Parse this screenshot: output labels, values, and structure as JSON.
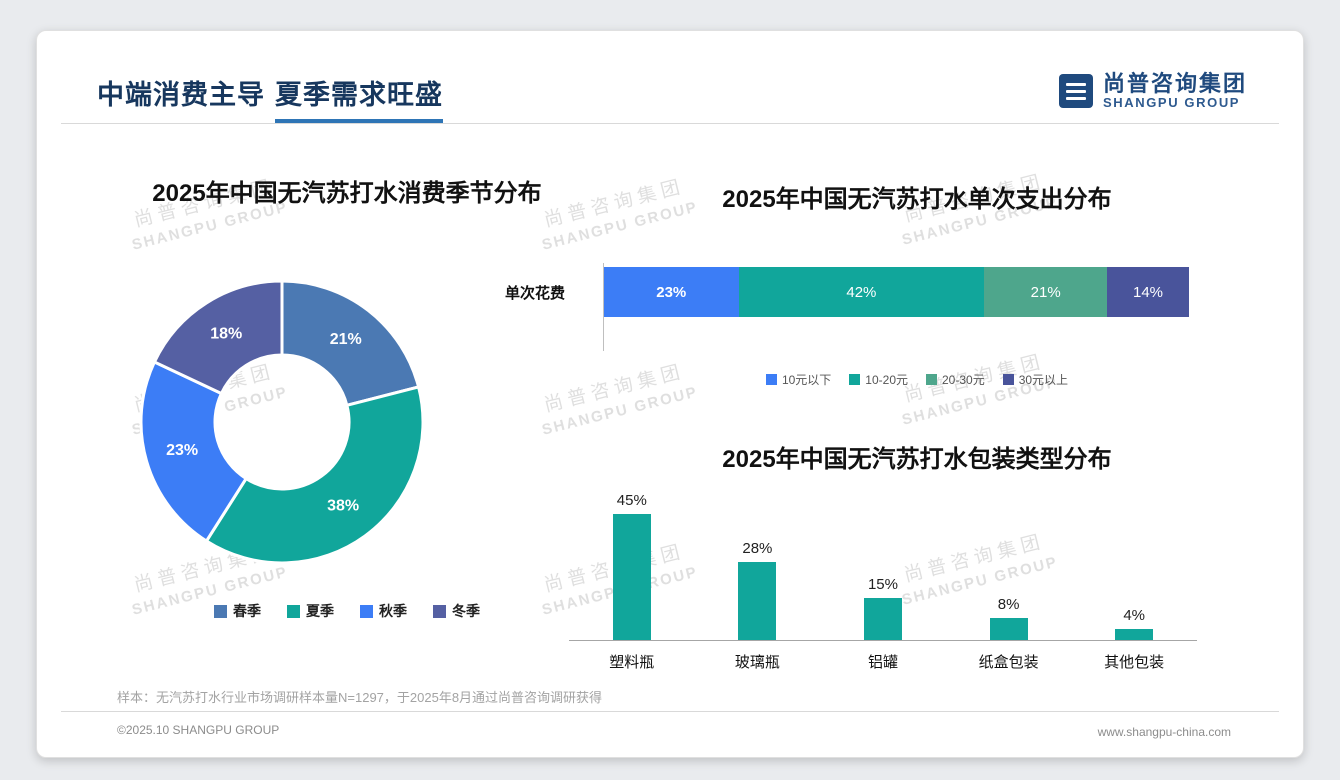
{
  "slide": {
    "title_part1": "中端消费主导",
    "title_part2": "夏季需求旺盛",
    "logo": {
      "name_cn": "尚普咨询集团",
      "name_en": "SHANGPU GROUP"
    },
    "watermark": {
      "line1": "尚普咨询集团",
      "line2": "SHANGPU GROUP"
    },
    "footnote": "样本：无汽苏打水行业市场调研样本量N=1297，于2025年8月通过尚普咨询调研获得",
    "footer": {
      "left": "©2025.10 SHANGPU GROUP",
      "right": "www.shangpu-china.com"
    }
  },
  "colors": {
    "accent_underline": "#2E75B6",
    "title_navy": "#17375E",
    "logo_navy": "#1F4A7E",
    "teal": "#11A69B",
    "steel_blue": "#4B79B3",
    "bright_blue": "#3C7DF6",
    "slate_blue": "#5560A3",
    "sea_green": "#4EA68C",
    "dark_slate": "#49549B"
  },
  "chart_data": [
    {
      "id": "season-donut",
      "type": "pie",
      "donut": true,
      "title": "2025年中国无汽苏打水消费季节分布",
      "categories": [
        "春季",
        "夏季",
        "秋季",
        "冬季"
      ],
      "values": [
        21,
        38,
        23,
        18
      ],
      "unit": "%",
      "colors": [
        "#4B79B3",
        "#11A69B",
        "#3C7DF6",
        "#5560A3"
      ],
      "legend_position": "bottom",
      "start_angle_deg": -90,
      "direction": "clockwise"
    },
    {
      "id": "spend-stacked-bar",
      "type": "bar",
      "orientation": "horizontal-stacked",
      "title": "2025年中国无汽苏打水单次支出分布",
      "row_label": "单次花费",
      "categories": [
        "10元以下",
        "10-20元",
        "20-30元",
        "30元以上"
      ],
      "values": [
        23,
        42,
        21,
        14
      ],
      "unit": "%",
      "colors": [
        "#3C7DF6",
        "#11A69B",
        "#4EA68C",
        "#49549B"
      ],
      "legend_position": "bottom",
      "xlim": [
        0,
        100
      ]
    },
    {
      "id": "packaging-bar",
      "type": "bar",
      "orientation": "vertical",
      "title": "2025年中国无汽苏打水包装类型分布",
      "categories": [
        "塑料瓶",
        "玻璃瓶",
        "铝罐",
        "纸盒包装",
        "其他包装"
      ],
      "values": [
        45,
        28,
        15,
        8,
        4
      ],
      "unit": "%",
      "ylim": [
        0,
        50
      ],
      "bar_color": "#11A69B",
      "grid": false,
      "value_labels": true
    }
  ]
}
